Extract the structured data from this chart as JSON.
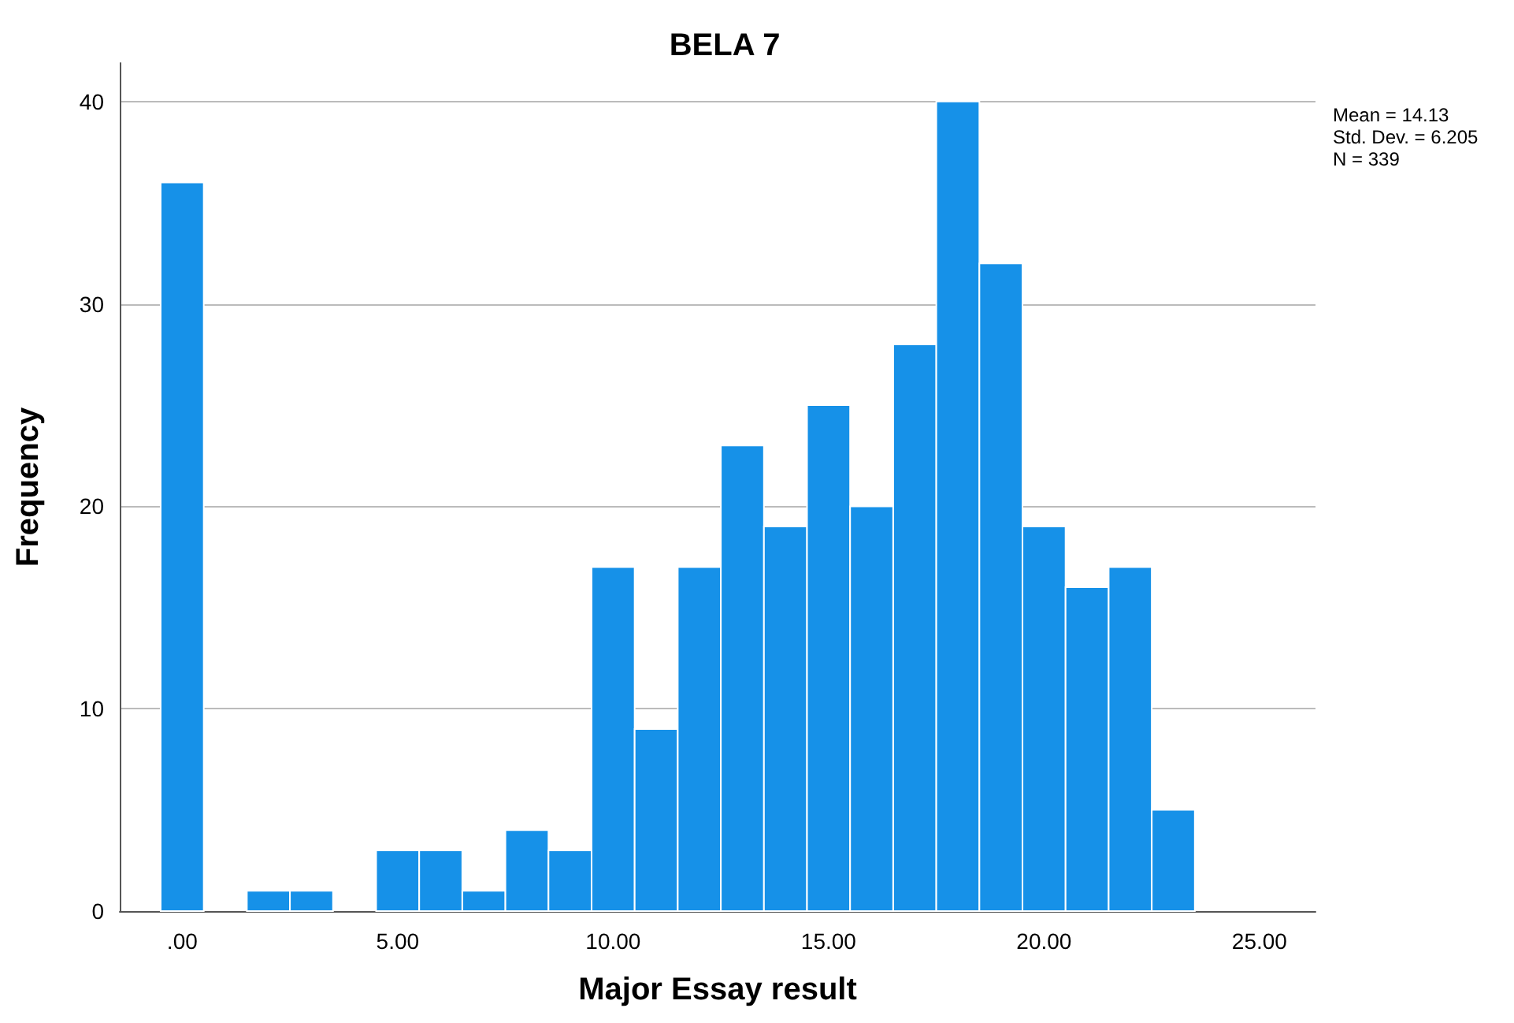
{
  "chart_data": {
    "type": "histogram",
    "title": "BELA 7",
    "xlabel": "Major Essay result",
    "ylabel": "Frequency",
    "bins": [
      -0.5,
      0.5,
      1.5,
      2.5,
      3.5,
      4.5,
      5.5,
      6.5,
      7.5,
      8.5,
      9.5,
      10.5,
      11.5,
      12.5,
      13.5,
      14.5,
      15.5,
      16.5,
      17.5,
      18.5,
      19.5,
      20.5,
      21.5,
      22.5,
      23.5
    ],
    "values": [
      36,
      0,
      1,
      1,
      0,
      3,
      3,
      1,
      4,
      3,
      17,
      9,
      17,
      23,
      19,
      25,
      20,
      28,
      40,
      32,
      19,
      16,
      17,
      5
    ],
    "color": "#1691e8",
    "xlim": [
      -1.45,
      26.3
    ],
    "xticks": [
      {
        "value": 0,
        "label": ".00"
      },
      {
        "value": 5,
        "label": "5.00"
      },
      {
        "value": 10,
        "label": "10.00"
      },
      {
        "value": 15,
        "label": "15.00"
      },
      {
        "value": 20,
        "label": "20.00"
      },
      {
        "value": 25,
        "label": "25.00"
      }
    ],
    "ylim": [
      0,
      41.9
    ],
    "yticks": [
      0,
      10,
      20,
      30,
      40
    ],
    "grid": "y",
    "annotations": [
      "Mean = 14.13",
      "Std. Dev. = 6.205",
      "N = 339"
    ]
  }
}
